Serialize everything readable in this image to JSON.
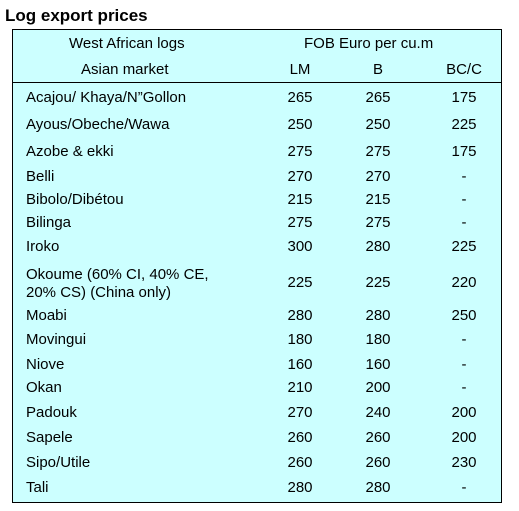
{
  "title": "Log export prices",
  "header": {
    "col1_line1": "West African logs",
    "col1_line2": "Asian market",
    "price_group": "FOB Euro per cu.m",
    "columns": [
      "LM",
      "B",
      "BC/C"
    ]
  },
  "rows": [
    {
      "name": "Acajou/ Khaya/N”Gollon",
      "lm": "265",
      "b": "265",
      "bcc": "175"
    },
    {
      "name": "Ayous/Obeche/Wawa",
      "lm": "250",
      "b": "250",
      "bcc": "225"
    },
    {
      "name": "Azobe & ekki",
      "lm": "275",
      "b": "275",
      "bcc": "175"
    },
    {
      "name": "Belli",
      "lm": "270",
      "b": "270",
      "bcc": "-"
    },
    {
      "name": "Bibolo/Dibétou",
      "lm": "215",
      "b": "215",
      "bcc": "-"
    },
    {
      "name": "Bilinga",
      "lm": "275",
      "b": "275",
      "bcc": "-"
    },
    {
      "name": "Iroko",
      "lm": "300",
      "b": "280",
      "bcc": "225"
    },
    {
      "name": "Okoume (60% CI, 40% CE,",
      "name2": "20% CS) (China only)",
      "lm": "225",
      "b": "225",
      "bcc": "220"
    },
    {
      "name": "Moabi",
      "lm": "280",
      "b": "280",
      "bcc": "250"
    },
    {
      "name": "Movingui",
      "lm": "180",
      "b": "180",
      "bcc": "-"
    },
    {
      "name": "Niove",
      "lm": "160",
      "b": "160",
      "bcc": "-"
    },
    {
      "name": "Okan",
      "lm": "210",
      "b": "200",
      "bcc": "-"
    },
    {
      "name": "Padouk",
      "lm": "270",
      "b": "240",
      "bcc": "200"
    },
    {
      "name": "Sapele",
      "lm": "260",
      "b": "260",
      "bcc": "200"
    },
    {
      "name": "Sipo/Utile",
      "lm": "260",
      "b": "260",
      "bcc": "230"
    },
    {
      "name": "Tali",
      "lm": "280",
      "b": "280",
      "bcc": "-"
    }
  ]
}
